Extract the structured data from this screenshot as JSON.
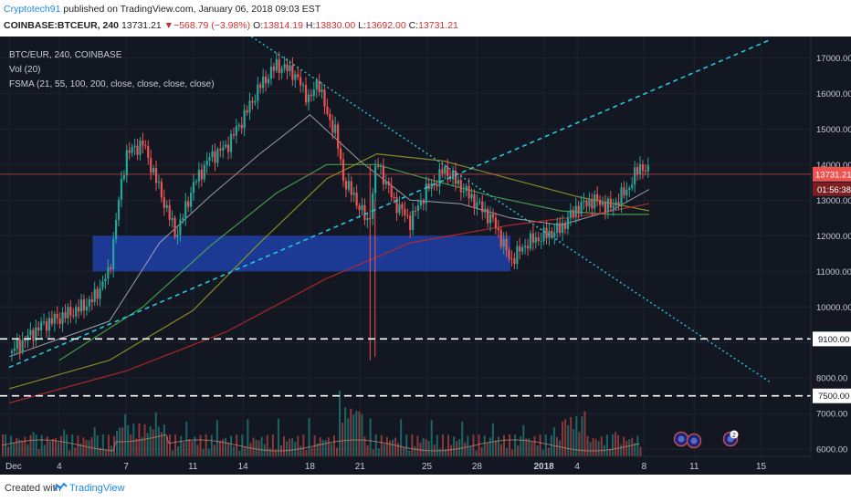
{
  "header": {
    "author": "Cryptotech91",
    "published_text": "published on TradingView.com, January 06, 2018 09:03 EST",
    "symbol": "COINBASE:BTCEUR, 240",
    "last": "13731.21",
    "change_arrow": "▼",
    "change": "−568.79 (−3.98%)",
    "open_label": "O:",
    "open": "13814.19",
    "high_label": "H:",
    "high": "13830.00",
    "low_label": "L:",
    "low": "13692.00",
    "close_label": "C:",
    "close": "13731.21"
  },
  "legend": {
    "title": "BTC/EUR, 240, COINBASE",
    "vol": "Vol (20)",
    "fsma": "FSMA (21, 55, 100, 200, close, close, close, close)"
  },
  "price_axis": {
    "labels": [
      "6000.00",
      "7000.00",
      "8000.00",
      "9000.00",
      "10000.00",
      "11000.00",
      "12000.00",
      "13000.00",
      "14000.00",
      "15000.00",
      "16000.00",
      "17000.00"
    ],
    "last_price_tag": "13731.21",
    "countdown_tag": "01:56:38",
    "level_tags": [
      "9100.00",
      "7500.00"
    ]
  },
  "time_axis": {
    "labels": [
      "Dec",
      "4",
      "7",
      "11",
      "14",
      "18",
      "21",
      "25",
      "28",
      "2018",
      "4",
      "8",
      "11",
      "15"
    ]
  },
  "event_badges": [
    "",
    "",
    "2"
  ],
  "footer": {
    "created_with": "Created with",
    "brand": "TradingView"
  },
  "colors": {
    "background": "#131722",
    "up": "#26a69a",
    "down": "#ef5350",
    "zone": "#1e3fa8",
    "trendline": "#26c6da",
    "ma21": "#b2b5be",
    "ma55": "#4caf50",
    "ma100": "#9e9d24",
    "ma200": "#c62828"
  },
  "chart_data": {
    "type": "candlestick",
    "title": "BTC/EUR, 240, COINBASE",
    "x_ticks": [
      "Dec",
      "4",
      "7",
      "11",
      "14",
      "18",
      "21",
      "25",
      "28",
      "2018",
      "4",
      "8",
      "11",
      "15"
    ],
    "ylim": [
      5800,
      17600
    ],
    "y_ticks": [
      6000,
      7000,
      8000,
      9000,
      10000,
      11000,
      12000,
      13000,
      14000,
      15000,
      16000,
      17000
    ],
    "grid": true,
    "price_path": [
      [
        0,
        8700
      ],
      [
        2,
        9500
      ],
      [
        4,
        9900
      ],
      [
        5,
        10200
      ],
      [
        6,
        11000
      ],
      [
        6.5,
        12800
      ],
      [
        7,
        14300
      ],
      [
        8,
        14600
      ],
      [
        9,
        13300
      ],
      [
        10,
        12000
      ],
      [
        11,
        13400
      ],
      [
        12,
        14200
      ],
      [
        13,
        14500
      ],
      [
        14,
        15300
      ],
      [
        15,
        16200
      ],
      [
        16,
        16800
      ],
      [
        17,
        16600
      ],
      [
        18,
        15800
      ],
      [
        18.5,
        16400
      ],
      [
        19,
        15400
      ],
      [
        19.5,
        15000
      ],
      [
        20,
        13600
      ],
      [
        21,
        12800
      ],
      [
        21.5,
        12300
      ],
      [
        22,
        14100
      ],
      [
        23,
        13000
      ],
      [
        24,
        12400
      ],
      [
        25,
        13300
      ],
      [
        25.7,
        13600
      ],
      [
        26,
        13900
      ],
      [
        27,
        13400
      ],
      [
        28,
        12900
      ],
      [
        29,
        12400
      ],
      [
        30,
        11300
      ],
      [
        31,
        11800
      ],
      [
        32,
        12000
      ],
      [
        33,
        12200
      ],
      [
        33.5,
        12500
      ],
      [
        34,
        12800
      ],
      [
        35,
        13000
      ],
      [
        36,
        12800
      ],
      [
        37,
        13300
      ],
      [
        37.8,
        14000
      ],
      [
        38.3,
        13731
      ]
    ],
    "moving_averages": [
      {
        "name": "MA 21",
        "points": [
          [
            0,
            8600
          ],
          [
            6,
            9600
          ],
          [
            9,
            11800
          ],
          [
            12,
            13100
          ],
          [
            15,
            14300
          ],
          [
            18,
            15400
          ],
          [
            21,
            14100
          ],
          [
            24,
            13000
          ],
          [
            27,
            12900
          ],
          [
            30,
            12500
          ],
          [
            33,
            12300
          ],
          [
            36,
            12700
          ],
          [
            38.3,
            13300
          ]
        ]
      },
      {
        "name": "MA 55",
        "points": [
          [
            3,
            8500
          ],
          [
            8,
            10000
          ],
          [
            12,
            11700
          ],
          [
            16,
            13200
          ],
          [
            19,
            14000
          ],
          [
            22,
            14000
          ],
          [
            25,
            13600
          ],
          [
            29,
            13100
          ],
          [
            33,
            12700
          ],
          [
            36,
            12600
          ],
          [
            38.3,
            12600
          ]
        ]
      },
      {
        "name": "MA 100",
        "points": [
          [
            0,
            7700
          ],
          [
            6,
            8500
          ],
          [
            11,
            9900
          ],
          [
            15,
            11800
          ],
          [
            19,
            13600
          ],
          [
            22,
            14300
          ],
          [
            26,
            14100
          ],
          [
            30,
            13600
          ],
          [
            34,
            13100
          ],
          [
            38.3,
            12700
          ]
        ]
      },
      {
        "name": "MA 200",
        "points": [
          [
            0,
            7300
          ],
          [
            7,
            8200
          ],
          [
            13,
            9300
          ],
          [
            19,
            10800
          ],
          [
            24,
            11800
          ],
          [
            30,
            12300
          ],
          [
            35,
            12600
          ],
          [
            38.3,
            12900
          ]
        ]
      }
    ],
    "support_zone": {
      "x_from": 5,
      "x_to": 30,
      "y_from": 11000,
      "y_to": 12000
    },
    "horizontal_levels": [
      9100,
      7500
    ],
    "trendlines": [
      {
        "name": "rising",
        "from": [
          0,
          8300
        ],
        "to": [
          45.5,
          17500
        ]
      },
      {
        "name": "falling",
        "from": [
          14.5,
          17600
        ],
        "to": [
          45.5,
          7900
        ]
      }
    ],
    "last_price": 13731.21
  }
}
